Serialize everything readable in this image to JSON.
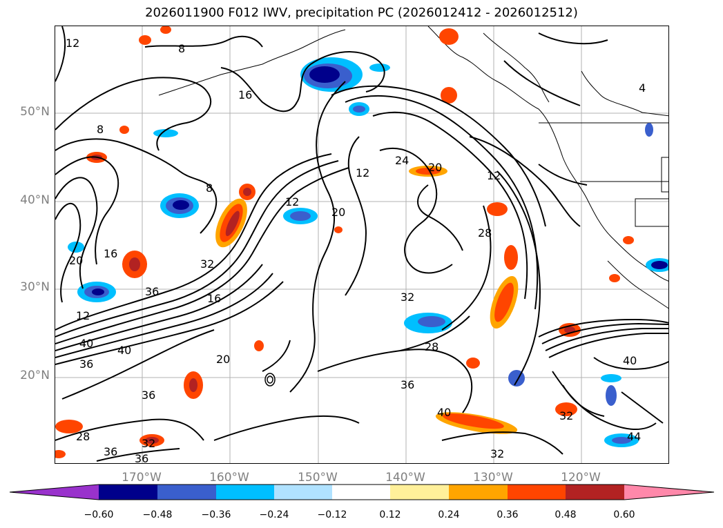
{
  "title": "2026011900 F012 IWV, precipitation PC (2026012412 - 2026012512)",
  "lat_labels": [
    "50°N",
    "40°N",
    "30°N",
    "20°N"
  ],
  "lon_labels": [
    "170°W",
    "160°W",
    "150°W",
    "140°W",
    "130°W",
    "120°W"
  ],
  "contour_labels": [
    "12",
    "8",
    "16",
    "4",
    "8",
    "8",
    "24",
    "20",
    "12",
    "12",
    "20",
    "12",
    "20",
    "16",
    "32",
    "28",
    "28",
    "36",
    "16",
    "12",
    "32",
    "40",
    "36",
    "20",
    "40",
    "36",
    "36",
    "32",
    "28",
    "36",
    "32",
    "40",
    "40",
    "36",
    "44",
    "32"
  ],
  "colorbar": {
    "colors": [
      "#9932cc",
      "#00008b",
      "#3a5fcd",
      "#00bfff",
      "#b0e2ff",
      "#ffffff",
      "#fff09a",
      "#ffa500",
      "#ff4500",
      "#b22222",
      "#ff88aa"
    ],
    "ticks": [
      "−0.60",
      "−0.48",
      "−0.36",
      "−0.24",
      "−0.12",
      "0.12",
      "0.24",
      "0.36",
      "0.48",
      "0.60"
    ]
  }
}
